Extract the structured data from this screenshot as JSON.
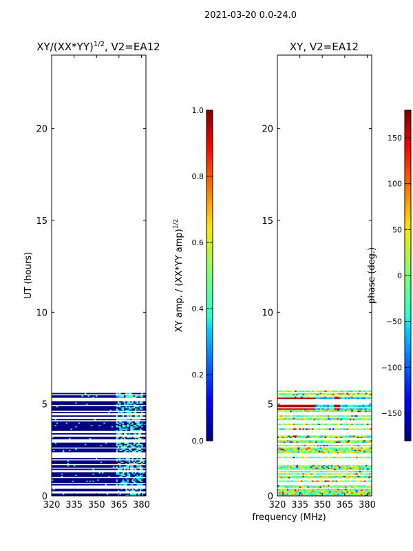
{
  "suptitle": "2021-03-20 0.0-24.0",
  "xlabel_shared": "frequency (MHz)",
  "chart_data": [
    {
      "type": "heatmap",
      "title": "XY/(XX*YY)^1/2, V2=EA12",
      "title_main": "XY/(XX*YY)",
      "title_exp": "1/2",
      "title_suffix": ", V2=EA12",
      "ylabel": "UT (hours)",
      "xlim": [
        320,
        383
      ],
      "ylim": [
        0,
        24
      ],
      "xticks": [
        320,
        335,
        350,
        365,
        380
      ],
      "yticks": [
        0,
        5,
        10,
        15,
        20
      ],
      "data_hours": [
        0,
        5.8
      ],
      "colorbar": {
        "label_main": "XY amp. / (XX*YY amp)",
        "label_exp": "1/2",
        "range": [
          0.0,
          1.0
        ],
        "ticks": [
          "0.0",
          "0.2",
          "0.4",
          "0.6",
          "0.8",
          "1.0"
        ]
      }
    },
    {
      "type": "heatmap",
      "title": "XY, V2=EA12",
      "ylabel": "",
      "xlim": [
        320,
        383
      ],
      "ylim": [
        0,
        24
      ],
      "xticks": [
        320,
        335,
        350,
        365,
        380
      ],
      "yticks": [
        0,
        5,
        10,
        15,
        20
      ],
      "data_hours": [
        0,
        5.8
      ],
      "colorbar": {
        "label_main": "phase (deg.)",
        "range": [
          -180,
          180
        ],
        "ticks": [
          "−150",
          "−100",
          "−50",
          "0",
          "50",
          "100",
          "150"
        ]
      }
    }
  ]
}
